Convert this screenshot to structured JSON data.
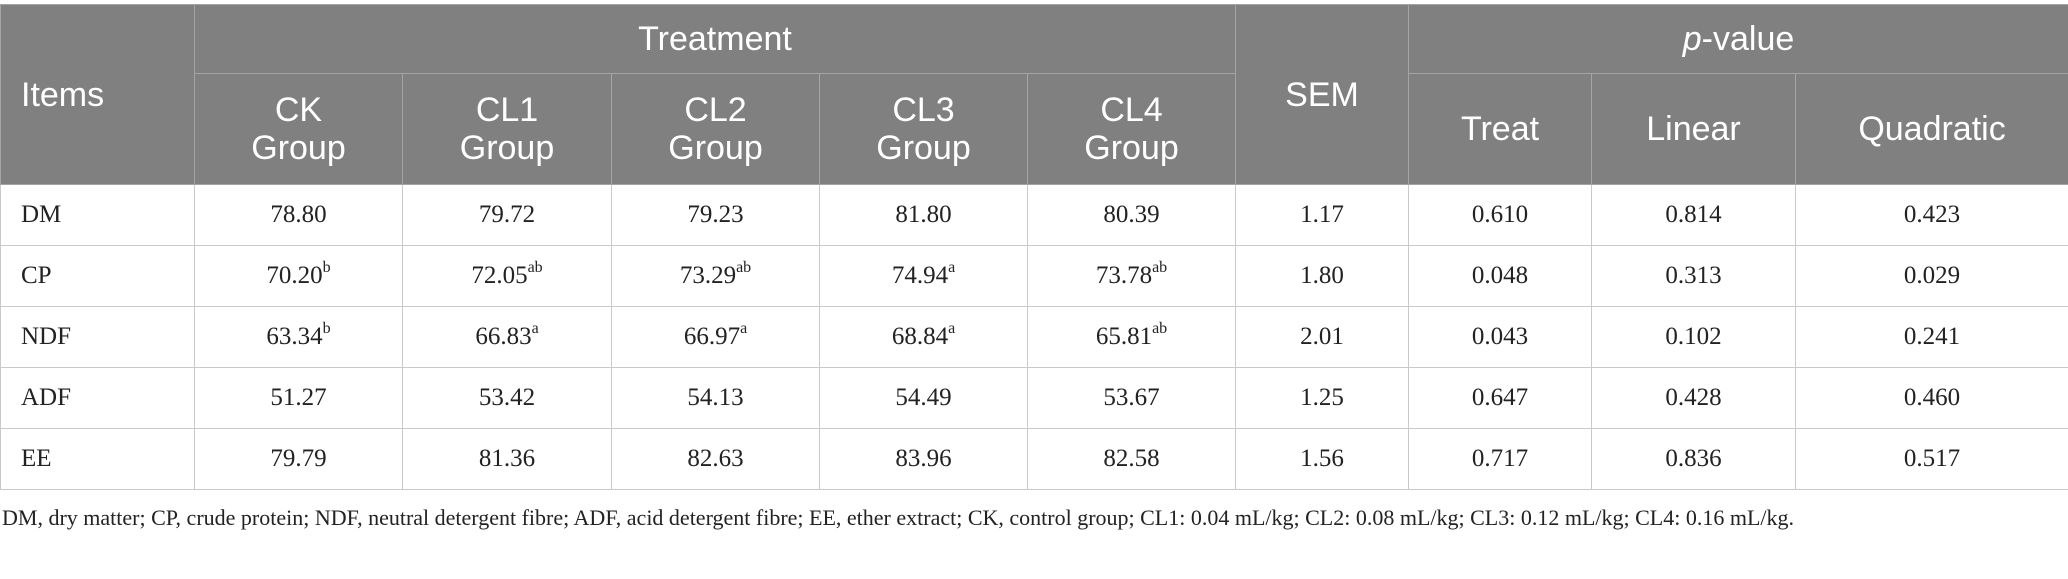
{
  "header": {
    "items": "Items",
    "treatment": "Treatment",
    "sem": "SEM",
    "pvalue_p": "p",
    "pvalue_rest": "-value",
    "groups": [
      {
        "line1": "CK",
        "line2": "Group"
      },
      {
        "line1": "CL1",
        "line2": "Group"
      },
      {
        "line1": "CL2",
        "line2": "Group"
      },
      {
        "line1": "CL3",
        "line2": "Group"
      },
      {
        "line1": "CL4",
        "line2": "Group"
      }
    ],
    "pcols": [
      "Treat",
      "Linear",
      "Quadratic"
    ]
  },
  "rows": [
    {
      "item": "DM",
      "cells": [
        {
          "v": "78.80",
          "s": ""
        },
        {
          "v": "79.72",
          "s": ""
        },
        {
          "v": "79.23",
          "s": ""
        },
        {
          "v": "81.80",
          "s": ""
        },
        {
          "v": "80.39",
          "s": ""
        }
      ],
      "sem": "1.17",
      "treat": "0.610",
      "linear": "0.814",
      "quadratic": "0.423"
    },
    {
      "item": "CP",
      "cells": [
        {
          "v": "70.20",
          "s": "b"
        },
        {
          "v": "72.05",
          "s": "ab"
        },
        {
          "v": "73.29",
          "s": "ab"
        },
        {
          "v": "74.94",
          "s": "a"
        },
        {
          "v": "73.78",
          "s": "ab"
        }
      ],
      "sem": "1.80",
      "treat": "0.048",
      "linear": "0.313",
      "quadratic": "0.029"
    },
    {
      "item": "NDF",
      "cells": [
        {
          "v": "63.34",
          "s": "b"
        },
        {
          "v": "66.83",
          "s": "a"
        },
        {
          "v": "66.97",
          "s": "a"
        },
        {
          "v": "68.84",
          "s": "a"
        },
        {
          "v": "65.81",
          "s": "ab"
        }
      ],
      "sem": "2.01",
      "treat": "0.043",
      "linear": "0.102",
      "quadratic": "0.241"
    },
    {
      "item": "ADF",
      "cells": [
        {
          "v": "51.27",
          "s": ""
        },
        {
          "v": "53.42",
          "s": ""
        },
        {
          "v": "54.13",
          "s": ""
        },
        {
          "v": "54.49",
          "s": ""
        },
        {
          "v": "53.67",
          "s": ""
        }
      ],
      "sem": "1.25",
      "treat": "0.647",
      "linear": "0.428",
      "quadratic": "0.460"
    },
    {
      "item": "EE",
      "cells": [
        {
          "v": "79.79",
          "s": ""
        },
        {
          "v": "81.36",
          "s": ""
        },
        {
          "v": "82.63",
          "s": ""
        },
        {
          "v": "83.96",
          "s": ""
        },
        {
          "v": "82.58",
          "s": ""
        }
      ],
      "sem": "1.56",
      "treat": "0.717",
      "linear": "0.836",
      "quadratic": "0.517"
    }
  ],
  "footnote": "DM, dry matter; CP, crude protein; NDF, neutral detergent fibre; ADF, acid detergent fibre; EE, ether extract; CK, control group; CL1: 0.04 mL/kg; CL2: 0.08 mL/kg; CL3: 0.12 mL/kg; CL4: 0.16 mL/kg."
}
